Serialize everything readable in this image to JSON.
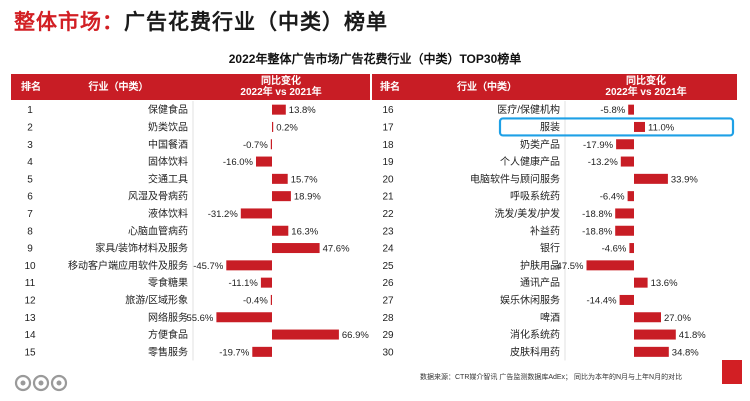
{
  "header": {
    "title_left": "整体市场：",
    "title_right": "广告花费行业（中类）榜单",
    "subtitle": "2022年整体广告市场广告花费行业（中类）TOP30榜单"
  },
  "table_header": {
    "rank": "排名",
    "industry": "行业（中类）",
    "change_line1": "同比变化",
    "change_line2": "2022年 vs 2021年"
  },
  "footer": {
    "source": "数据来源：CTR媒介智讯 广告监测数据库AdEx；  同比为本年的N月与上年N月的对比"
  },
  "colors": {
    "bar": "#c81d25",
    "header_bg": "#c81d25",
    "highlight": "#1ea0e6",
    "title_accent": "#d21f24"
  },
  "highlight_rank": 17,
  "chart_data": [
    {
      "type": "bar",
      "orientation": "horizontal",
      "title": "",
      "xlabel": "同比变化 2022年 vs 2021年",
      "unit": "%",
      "ranks": [
        1,
        2,
        3,
        4,
        5,
        6,
        7,
        8,
        9,
        10,
        11,
        12,
        13,
        14,
        15
      ],
      "categories": [
        "保健食品",
        "奶类饮品",
        "中国餐酒",
        "固体饮料",
        "交通工具",
        "风湿及骨病药",
        "液体饮料",
        "心脑血管病药",
        "家具/装饰材料及服务",
        "移动客户端应用软件及服务",
        "零食糖果",
        "旅游/区域形象",
        "网络服务",
        "方便食品",
        "零售服务"
      ],
      "values": [
        13.8,
        0.2,
        -0.7,
        -16.0,
        15.7,
        18.9,
        -31.2,
        16.3,
        47.6,
        -45.7,
        -11.1,
        -0.4,
        -55.6,
        66.9,
        -19.7
      ],
      "labels": [
        "13.8%",
        "0.2%",
        "-0.7%",
        "-16.0%",
        "15.7%",
        "18.9%",
        "-31.2%",
        "16.3%",
        "47.6%",
        "-45.7%",
        "-11.1%",
        "-0.4%",
        "-55.6%",
        "66.9%",
        "-19.7%"
      ]
    },
    {
      "type": "bar",
      "orientation": "horizontal",
      "title": "",
      "xlabel": "同比变化 2022年 vs 2021年",
      "unit": "%",
      "ranks": [
        16,
        17,
        18,
        19,
        20,
        21,
        22,
        23,
        24,
        25,
        26,
        27,
        28,
        29,
        30
      ],
      "categories": [
        "医疗/保健机构",
        "服装",
        "奶类产品",
        "个人健康产品",
        "电脑软件与顾问服务",
        "呼吸系统药",
        "洗发/美发/护发",
        "补益药",
        "银行",
        "护肤用品",
        "通讯产品",
        "娱乐休闲服务",
        "啤酒",
        "消化系统药",
        "皮肤科用药"
      ],
      "values": [
        -5.8,
        11.0,
        -17.9,
        -13.2,
        33.9,
        -6.4,
        -18.8,
        -18.8,
        -4.6,
        -47.5,
        13.6,
        -14.4,
        27.0,
        41.8,
        34.8
      ],
      "labels": [
        "-5.8%",
        "11.0%",
        "-17.9%",
        "-13.2%",
        "33.9%",
        "-6.4%",
        "-18.8%",
        "-18.8%",
        "-4.6%",
        "-47.5%",
        "13.6%",
        "-14.4%",
        "27.0%",
        "41.8%",
        "34.8%"
      ]
    }
  ]
}
